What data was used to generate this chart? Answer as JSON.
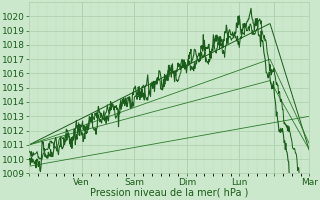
{
  "bg_color": "#cce8cc",
  "grid_color_major": "#aacfaa",
  "grid_color_minor": "#bbdabb",
  "line_color_dark": "#1a5c1a",
  "line_color_mid": "#2d7a2d",
  "ylabel": "Pression niveau de la mer( hPa )",
  "ylim": [
    1009,
    1021
  ],
  "yticks": [
    1009,
    1010,
    1011,
    1012,
    1013,
    1014,
    1015,
    1016,
    1017,
    1018,
    1019,
    1020
  ],
  "xtick_positions": [
    0,
    36,
    72,
    108,
    144,
    168,
    192
  ],
  "xtick_labels": [
    "",
    "Ven",
    "Sam",
    "Dim",
    "Lun",
    "",
    "Mar"
  ],
  "total_hours": 192,
  "label_fontsize": 7,
  "axis_fontsize": 6.5
}
